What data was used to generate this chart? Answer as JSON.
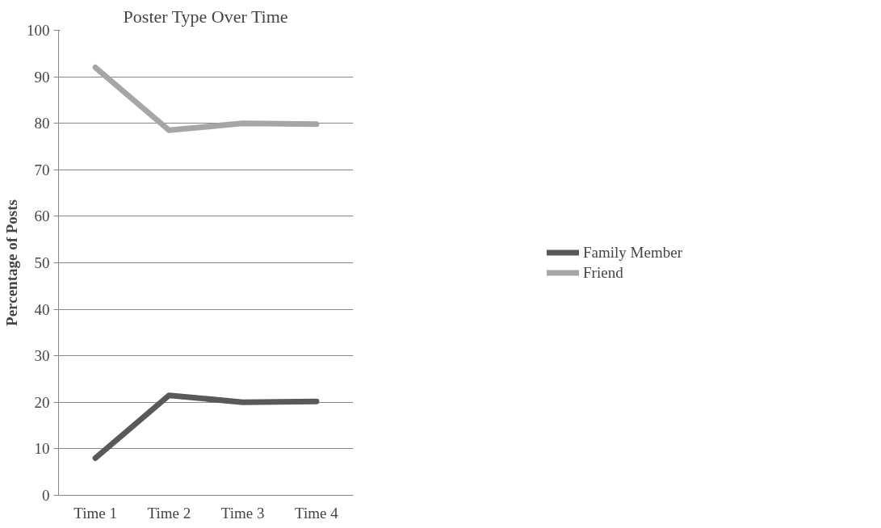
{
  "chart_data": {
    "type": "line",
    "title": "Poster Type Over Time",
    "ylabel": "Percentage of Posts",
    "categories": [
      "Time 1",
      "Time 2",
      "Time 3",
      "Time 4"
    ],
    "series": [
      {
        "name": "Family Member",
        "color": "#595959",
        "values": [
          8,
          21.5,
          20,
          20.2
        ]
      },
      {
        "name": "Friend",
        "color": "#a6a6a6",
        "values": [
          92,
          78.5,
          80,
          79.8
        ]
      }
    ],
    "ylim": [
      0,
      100
    ],
    "yticks": [
      0,
      10,
      20,
      30,
      40,
      50,
      60,
      70,
      80,
      90,
      100
    ],
    "grid": "y",
    "legend": "right",
    "marker": "none",
    "line_style": "solid"
  }
}
